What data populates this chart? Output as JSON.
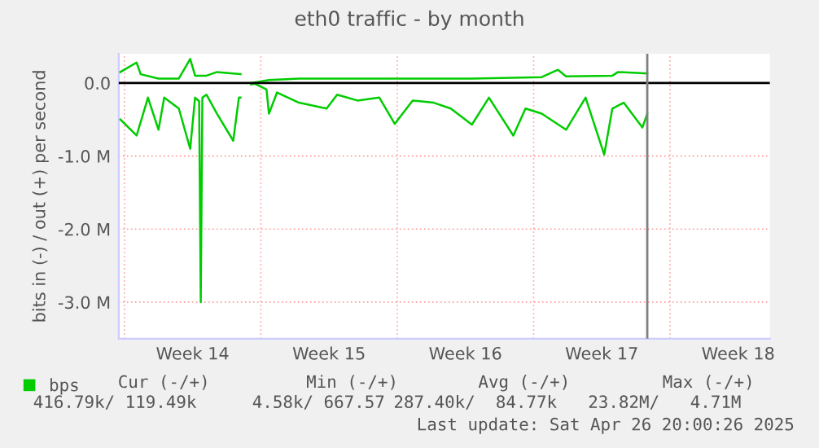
{
  "chart_data": {
    "type": "line",
    "title": "eth0 traffic - by month",
    "ylabel": "bits in (-) / out (+) per second",
    "series": [
      {
        "name": "bps",
        "color": "#00cc00",
        "x": [
          "2025-03-30T19:00",
          "2025-03-31T15:00",
          "2025-03-31T20:00",
          "2025-04-01T18:00",
          "2025-04-02T19:00",
          "2025-04-03T09:00",
          "2025-04-03T15:00",
          "2025-04-04T05:00",
          "2025-04-04T18:00",
          "2025-04-05T14:00",
          "2025-04-05T23:00",
          "2025-04-06T06:00",
          "2025-04-06T12:00",
          "2025-04-07T10:00",
          "2025-04-08T23:00",
          "2025-04-13T02:00",
          "2025-04-17T20:00",
          "2025-04-21T10:00",
          "2025-04-22T06:00",
          "2025-04-22T16:00",
          "2025-04-25T01:00",
          "2025-04-25T08:00",
          "2025-04-26T20:00"
        ],
        "values": [
          150000,
          280000,
          120000,
          60000,
          60000,
          330000,
          100000,
          100000,
          150000,
          130000,
          120000,
          null,
          0,
          40000,
          60000,
          60000,
          60000,
          80000,
          180000,
          90000,
          100000,
          150000,
          130000
        ]
      },
      {
        "color": "#00cc00",
        "x": [
          "2025-03-30T19:00",
          "2025-03-31T15:00",
          "2025-04-01T05:00",
          "2025-04-01T18:00",
          "2025-04-02T01:00",
          "2025-04-02T19:00",
          "2025-04-03T09:00",
          "2025-04-03T15:00",
          "2025-04-03T20:00",
          "2025-04-03T22:00",
          "2025-04-04T00:00",
          "2025-04-04T05:00",
          "2025-04-04T18:00",
          "2025-04-05T14:00",
          "2025-04-05T21:00",
          "2025-04-05T23:00",
          "2025-04-06T06:00",
          "2025-04-06T12:00",
          "2025-04-06T17:00",
          "2025-04-07T07:00",
          "2025-04-07T10:00",
          "2025-04-07T20:00",
          "2025-04-08T23:00",
          "2025-04-10T09:00",
          "2025-04-10T22:00",
          "2025-04-11T23:00",
          "2025-04-13T02:00",
          "2025-04-13T21:00",
          "2025-04-14T19:00",
          "2025-04-15T21:00",
          "2025-04-16T18:00",
          "2025-04-17T20:00",
          "2025-04-18T17:00",
          "2025-04-19T23:00",
          "2025-04-20T14:00",
          "2025-04-21T10:00",
          "2025-04-22T16:00",
          "2025-04-23T16:00",
          "2025-04-24T15:00",
          "2025-04-25T01:00",
          "2025-04-25T15:00",
          "2025-04-26T14:00",
          "2025-04-26T20:00"
        ],
        "values": [
          -500000,
          -720000,
          -200000,
          -640000,
          -200000,
          -350000,
          -900000,
          -200000,
          -250000,
          -3000000,
          -200000,
          -160000,
          -420000,
          -790000,
          -200000,
          -200000,
          null,
          -20000,
          -10000,
          -90000,
          -420000,
          -130000,
          -270000,
          -350000,
          -160000,
          -240000,
          -200000,
          -560000,
          -240000,
          -270000,
          -350000,
          -570000,
          -200000,
          -720000,
          -350000,
          -420000,
          -640000,
          -200000,
          -980000,
          -350000,
          -270000,
          -610000,
          -420000
        ]
      }
    ],
    "xlim": [
      "2025-03-30T17:00",
      "2025-05-03T03:00"
    ],
    "xticks": [
      {
        "value": "2025-03-31",
        "label": null
      },
      {
        "value": "2025-04-03T12:00",
        "label": "Week 14"
      },
      {
        "value": "2025-04-07",
        "label": null
      },
      {
        "value": "2025-04-10T12:00",
        "label": "Week 15"
      },
      {
        "value": "2025-04-14",
        "label": null
      },
      {
        "value": "2025-04-17T12:00",
        "label": "Week 16"
      },
      {
        "value": "2025-04-21",
        "label": null
      },
      {
        "value": "2025-04-24T12:00",
        "label": "Week 17"
      },
      {
        "value": "2025-04-28",
        "label": null
      },
      {
        "value": "2025-05-01T12:00",
        "label": "Week 18"
      }
    ],
    "ylim": [
      -3500000,
      400000
    ],
    "yticks": [
      {
        "value": -3000000,
        "label": "-3.0 M"
      },
      {
        "value": -2000000,
        "label": "-2.0 M"
      },
      {
        "value": -1000000,
        "label": "-1.0 M"
      },
      {
        "value": 0,
        "label": "0.0"
      }
    ],
    "ref_lines": [
      {
        "axis": "y",
        "value": 0,
        "color": "#000000"
      },
      {
        "axis": "x",
        "value": "2025-04-26T20:00",
        "color": "#808080"
      }
    ],
    "grid": true,
    "legend": "bottom left",
    "marker": "none",
    "line_style": "solid",
    "annotations": [
      "Cur (-/+)",
      "Min (-/+)",
      "Avg (-/+)",
      "Max (-/+)",
      "416.79k/ 119.49k",
      "4.58k/ 667.57",
      "287.40k/  84.77k",
      "23.82M/   4.71M",
      "Last update: Sat Apr 26 20:00:26 2025"
    ]
  }
}
